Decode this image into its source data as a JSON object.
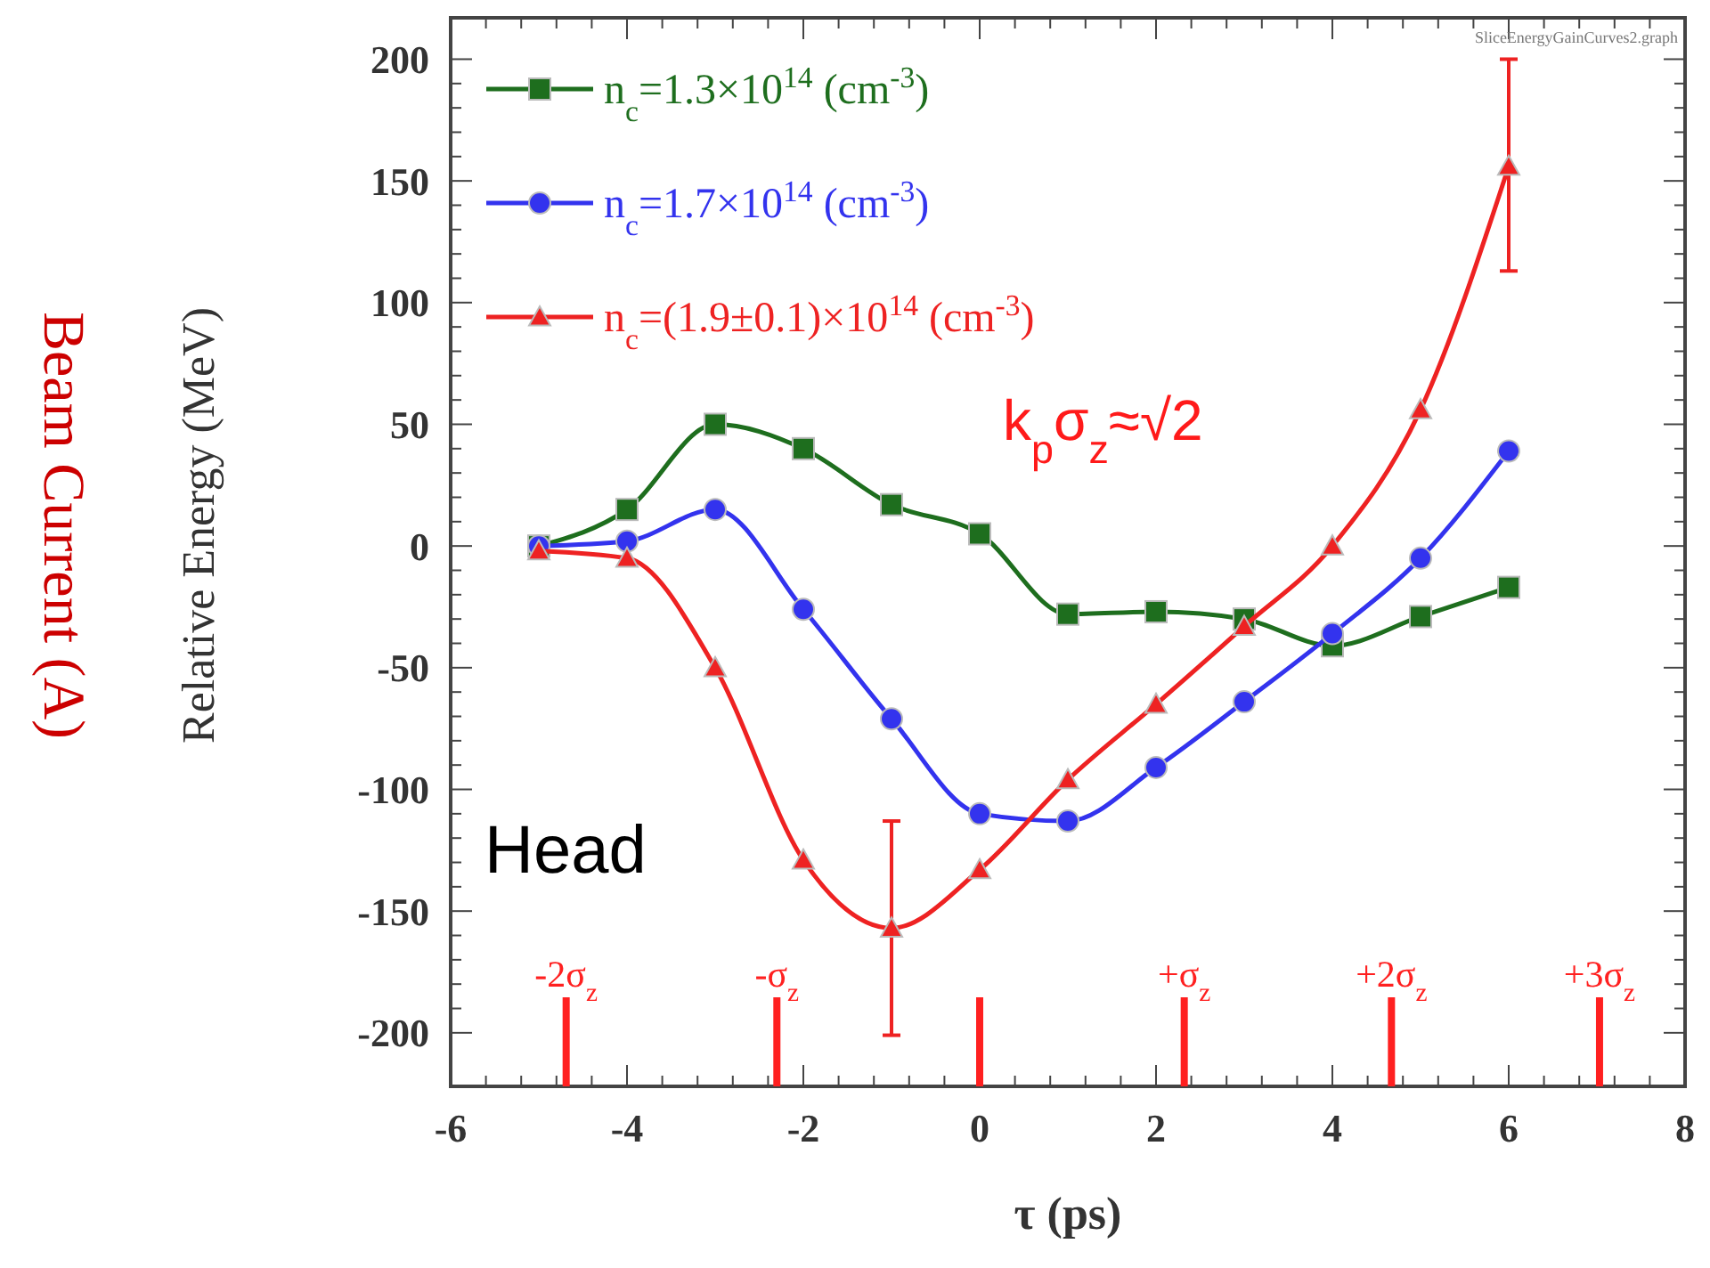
{
  "chart_data": {
    "type": "line",
    "xlabel": "τ (ps)",
    "ylabel": "Relative Energy (MeV)",
    "y2label": "Beam Current (A)",
    "x": [
      -5,
      -4,
      -3,
      -2,
      -1,
      0,
      1,
      2,
      3,
      4,
      5,
      6
    ],
    "xlim": [
      -6,
      8
    ],
    "xticks": [
      -6,
      -4,
      -2,
      0,
      2,
      4,
      6,
      8
    ],
    "ylim": [
      -222,
      217
    ],
    "yticks": [
      -200,
      -150,
      -100,
      -50,
      0,
      50,
      100,
      150,
      200
    ],
    "grid": false,
    "legend": "top left",
    "line_style": "solid",
    "series": [
      {
        "name": "n$_{c}$=1.3×10$^{14}$ (cm$^{-3}$)",
        "color": "#1e6e1e",
        "marker": "square",
        "values": [
          0,
          15,
          50,
          40,
          17,
          5,
          -28,
          -27,
          -30,
          -41,
          -29,
          -17
        ]
      },
      {
        "name": "n$_{c}$=1.7×10$^{14}$ (cm$^{-3}$)",
        "color": "#3333ee",
        "marker": "circle",
        "values": [
          0,
          2,
          15,
          -26,
          -71,
          -110,
          -113,
          -91,
          -64,
          -36,
          -5,
          39
        ]
      },
      {
        "name": "n$_{c}$=(1.9±0.1)×10$^{14}$ (cm$^{-3}$)",
        "color": "#ee2222",
        "marker": "triangle",
        "values": [
          -2,
          -5,
          -50,
          -129,
          -157,
          -133,
          -96,
          -65,
          -33,
          0,
          56,
          156
        ],
        "errors": [
          null,
          null,
          null,
          null,
          [
            -201,
            -113
          ],
          null,
          null,
          null,
          null,
          null,
          null,
          [
            113,
            200
          ]
        ]
      }
    ],
    "ref_lines": [
      {
        "axis": "x",
        "value": -4.69,
        "label": "-2σ$_{z}$",
        "color": "#ff2020"
      },
      {
        "axis": "x",
        "value": -2.3,
        "label": "-σ$_{z}$",
        "color": "#ff2020"
      },
      {
        "axis": "x",
        "value": 0,
        "label": null,
        "color": "#ff2020"
      },
      {
        "axis": "x",
        "value": 2.32,
        "label": "+σ$_{z}$",
        "color": "#ff2020"
      },
      {
        "axis": "x",
        "value": 4.67,
        "label": "+2σ$_{z}$",
        "color": "#ff2020"
      },
      {
        "axis": "x",
        "value": 7.03,
        "label": "+3σ$_{z}$",
        "color": "#ff2020"
      }
    ],
    "annotations": [
      "SliceEnergyGainCurves2.graph",
      "k$_{p}$σ$_{z}$≈√2",
      "Head"
    ]
  }
}
